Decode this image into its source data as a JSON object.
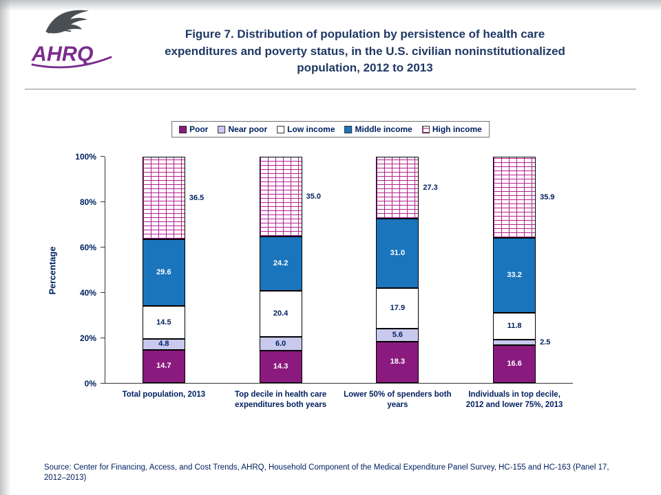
{
  "logo": {
    "org": "AHRQ"
  },
  "chart_data": {
    "type": "bar",
    "stacked": true,
    "title": "Figure 7. Distribution of population by persistence of health care expenditures and poverty status, in the U.S. civilian noninstitutionalized population, 2012 to 2013",
    "ylabel": "Percentage",
    "ylim": [
      0,
      100
    ],
    "yticks": [
      "0%",
      "20%",
      "40%",
      "60%",
      "80%",
      "100%"
    ],
    "legend_position": "top",
    "grid": false,
    "categories": [
      "Total population, 2013",
      "Top decile in health care expenditures both years",
      "Lower 50% of spenders both years",
      "Individuals in top decile, 2012 and lower 75%, 2013"
    ],
    "series": [
      {
        "name": "Poor",
        "color": "#8A1A7E",
        "text_color": "#FFFFFF",
        "label_position": "inside",
        "values": [
          14.7,
          14.3,
          18.3,
          16.6
        ]
      },
      {
        "name": "Near poor",
        "color": "#C9C9EE",
        "text_color": "#002060",
        "label_position": "inside",
        "values": [
          4.8,
          6.0,
          5.6,
          2.5
        ]
      },
      {
        "name": "Low income",
        "color": "#FFFFFF",
        "text_color": "#002060",
        "label_position": "inside",
        "values": [
          14.5,
          20.4,
          17.9,
          11.8
        ]
      },
      {
        "name": "Middle income",
        "color": "#1B75BC",
        "text_color": "#FFFFFF",
        "label_position": "inside",
        "values": [
          29.6,
          24.2,
          31.0,
          33.2
        ]
      },
      {
        "name": "High income",
        "color": "#FFFFFF",
        "pattern": "brick",
        "pattern_color": "#B01E8E",
        "text_color": "#002060",
        "label_position": "outside",
        "values": [
          36.5,
          35.0,
          27.3,
          35.9
        ]
      }
    ]
  },
  "source": "Source: Center for Financing, Access, and Cost Trends, AHRQ, Household Component of the Medical Expenditure Panel Survey, HC-155 and HC-163 (Panel 17, 2012–2013)"
}
